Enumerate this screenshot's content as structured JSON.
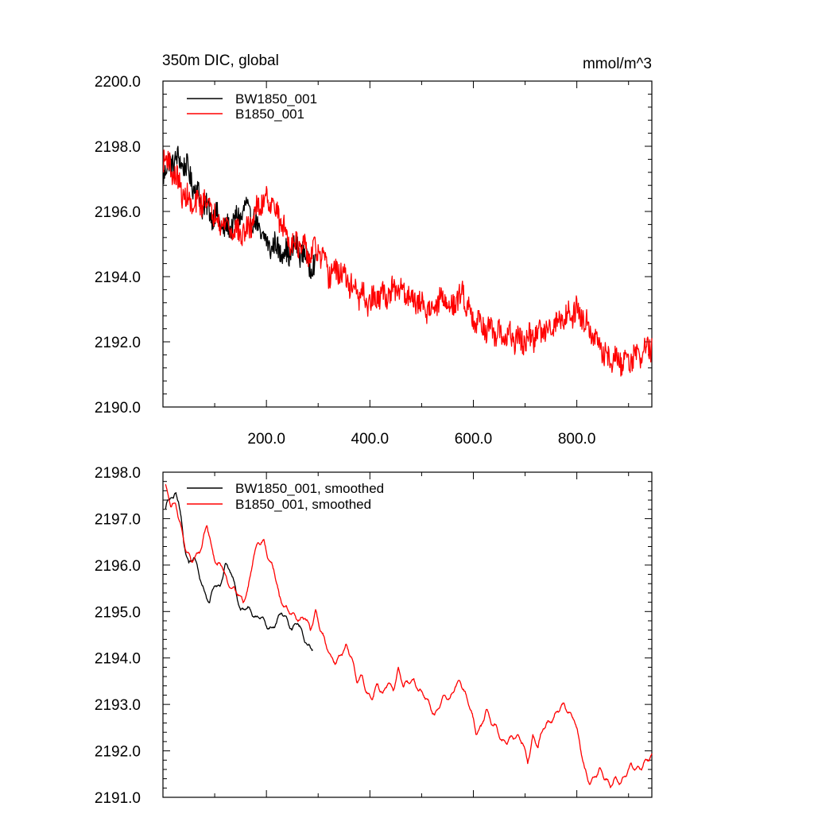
{
  "chart_data": [
    {
      "type": "line",
      "title": "350m DIC, global",
      "units_label": "mmol/m^3",
      "xlim": [
        0,
        945
      ],
      "ylim": [
        2190.0,
        2200.0
      ],
      "y_ticks": [
        2190.0,
        2192.0,
        2194.0,
        2196.0,
        2198.0,
        2200.0
      ],
      "y_tick_labels": [
        "2190.0",
        "2192.0",
        "2194.0",
        "2196.0",
        "2198.0",
        "2200.0"
      ],
      "x_ticks": [
        200,
        400,
        600,
        800
      ],
      "x_tick_labels": [
        "200.0",
        "400.0",
        "600.0",
        "800.0"
      ],
      "legend_position": "top-left",
      "series": [
        {
          "name": "BW1850_001",
          "color": "#000000",
          "noise": 0.45,
          "x": [
            1,
            20,
            40,
            60,
            80,
            100,
            120,
            140,
            160,
            180,
            200,
            220,
            240,
            260,
            280,
            295
          ],
          "values": [
            2197.2,
            2197.6,
            2197.5,
            2196.8,
            2196.1,
            2195.9,
            2195.4,
            2195.7,
            2196.1,
            2195.6,
            2195.0,
            2194.9,
            2194.7,
            2194.9,
            2194.5,
            2194.2
          ]
        },
        {
          "name": "B1850_001",
          "color": "#ff0000",
          "noise": 0.45,
          "x": [
            1,
            10,
            20,
            40,
            60,
            80,
            100,
            120,
            140,
            160,
            180,
            200,
            220,
            240,
            260,
            280,
            300,
            320,
            340,
            360,
            380,
            400,
            420,
            440,
            460,
            480,
            500,
            520,
            540,
            560,
            580,
            600,
            620,
            640,
            660,
            680,
            700,
            720,
            740,
            760,
            780,
            800,
            820,
            840,
            860,
            880,
            900,
            920,
            945
          ],
          "values": [
            2197.7,
            2197.5,
            2197.2,
            2196.5,
            2196.1,
            2196.4,
            2195.9,
            2195.6,
            2195.4,
            2195.3,
            2196.0,
            2196.5,
            2196.0,
            2195.2,
            2195.0,
            2194.7,
            2194.8,
            2194.1,
            2194.2,
            2193.8,
            2193.4,
            2193.2,
            2193.4,
            2193.5,
            2193.6,
            2193.4,
            2193.1,
            2193.0,
            2193.3,
            2193.1,
            2193.5,
            2192.7,
            2192.5,
            2192.2,
            2192.2,
            2192.1,
            2192.0,
            2192.2,
            2192.4,
            2192.6,
            2192.8,
            2193.0,
            2192.6,
            2191.9,
            2191.5,
            2191.4,
            2191.5,
            2191.6,
            2191.9
          ]
        }
      ]
    },
    {
      "type": "line",
      "title": "",
      "xlim": [
        0,
        945
      ],
      "ylim": [
        2191.0,
        2198.0
      ],
      "y_ticks": [
        2191.0,
        2192.0,
        2193.0,
        2194.0,
        2195.0,
        2196.0,
        2197.0,
        2198.0
      ],
      "y_tick_labels": [
        "2191.0",
        "2192.0",
        "2193.0",
        "2194.0",
        "2195.0",
        "2196.0",
        "2197.0",
        "2198.0"
      ],
      "x_ticks": [
        200,
        400,
        600,
        800
      ],
      "x_tick_labels": [],
      "legend_position": "top-left",
      "series": [
        {
          "name": "BW1850_001, smoothed",
          "color": "#000000",
          "noise": 0.08,
          "x": [
            5,
            10,
            15,
            20,
            25,
            30,
            35,
            40,
            50,
            60,
            70,
            80,
            90,
            100,
            110,
            120,
            130,
            140,
            150,
            160,
            170,
            180,
            190,
            200,
            210,
            220,
            230,
            240,
            250,
            260,
            270,
            280,
            290
          ],
          "values": [
            2197.2,
            2197.4,
            2197.5,
            2197.4,
            2197.55,
            2197.4,
            2197.0,
            2196.5,
            2196.0,
            2196.2,
            2195.8,
            2195.4,
            2195.2,
            2195.6,
            2195.5,
            2196.0,
            2195.9,
            2195.5,
            2195.0,
            2195.1,
            2195.0,
            2194.85,
            2194.9,
            2194.7,
            2194.6,
            2194.8,
            2195.0,
            2194.8,
            2194.6,
            2194.8,
            2194.5,
            2194.25,
            2194.2
          ]
        },
        {
          "name": "B1850_001, smoothed",
          "color": "#ff0000",
          "noise": 0.08,
          "x": [
            5,
            15,
            25,
            35,
            45,
            55,
            65,
            75,
            85,
            95,
            105,
            115,
            125,
            135,
            145,
            155,
            165,
            175,
            185,
            195,
            205,
            215,
            225,
            235,
            245,
            255,
            265,
            275,
            285,
            295,
            305,
            315,
            325,
            335,
            345,
            355,
            365,
            375,
            385,
            395,
            405,
            415,
            425,
            435,
            445,
            455,
            465,
            475,
            485,
            495,
            505,
            515,
            525,
            535,
            545,
            555,
            565,
            575,
            585,
            595,
            605,
            615,
            625,
            635,
            645,
            655,
            665,
            675,
            685,
            695,
            705,
            715,
            725,
            735,
            745,
            755,
            765,
            775,
            785,
            795,
            805,
            815,
            825,
            835,
            845,
            855,
            865,
            875,
            885,
            895,
            905,
            915,
            925,
            935,
            945
          ],
          "values": [
            2197.7,
            2197.3,
            2197.3,
            2196.8,
            2196.3,
            2196.1,
            2196.2,
            2196.4,
            2196.9,
            2196.3,
            2196.0,
            2196.0,
            2195.6,
            2195.5,
            2195.4,
            2195.2,
            2195.5,
            2196.2,
            2196.5,
            2196.5,
            2196.1,
            2195.9,
            2195.3,
            2195.1,
            2195.0,
            2194.9,
            2194.8,
            2194.9,
            2194.6,
            2195.0,
            2194.6,
            2194.3,
            2194.0,
            2193.9,
            2194.1,
            2194.25,
            2194.0,
            2193.5,
            2193.6,
            2193.2,
            2193.15,
            2193.45,
            2193.2,
            2193.5,
            2193.3,
            2193.75,
            2193.4,
            2193.5,
            2193.5,
            2193.3,
            2193.2,
            2193.0,
            2192.75,
            2193.0,
            2193.2,
            2193.1,
            2193.4,
            2193.5,
            2193.2,
            2192.9,
            2192.4,
            2192.5,
            2192.9,
            2192.6,
            2192.5,
            2192.2,
            2192.2,
            2192.3,
            2192.3,
            2192.2,
            2191.75,
            2192.3,
            2192.1,
            2192.5,
            2192.6,
            2192.7,
            2192.9,
            2193.0,
            2192.8,
            2192.7,
            2192.2,
            2191.6,
            2191.3,
            2191.45,
            2191.6,
            2191.4,
            2191.25,
            2191.4,
            2191.3,
            2191.5,
            2191.7,
            2191.6,
            2191.65,
            2191.8,
            2191.9
          ]
        }
      ]
    }
  ]
}
